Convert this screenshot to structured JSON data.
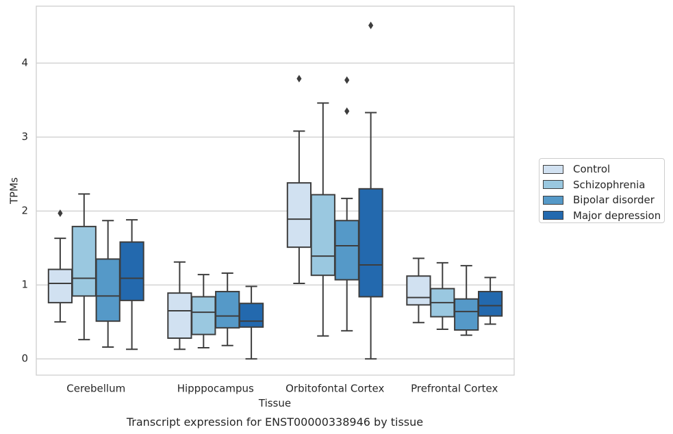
{
  "chart_data": {
    "type": "boxplot",
    "title": "",
    "xlabel": "Tissue",
    "ylabel": "TPMs",
    "caption": "Transcript expression for ENST00000338946 by tissue",
    "categories": [
      "Cerebellum",
      "Hipppocampus",
      "Orbitofontal Cortex",
      "Prefrontal Cortex"
    ],
    "ylim": [
      -0.22,
      4.77
    ],
    "yticks": [
      0,
      1,
      2,
      3,
      4
    ],
    "grid": "horizontal",
    "legend_position": "right",
    "series": [
      {
        "name": "Control",
        "color": "#d1e1f1",
        "boxes": [
          {
            "whislo": 0.5,
            "q1": 0.76,
            "med": 1.02,
            "q3": 1.21,
            "whishi": 1.63,
            "fliers": [
              1.97
            ]
          },
          {
            "whislo": 0.13,
            "q1": 0.28,
            "med": 0.65,
            "q3": 0.89,
            "whishi": 1.31,
            "fliers": []
          },
          {
            "whislo": 1.02,
            "q1": 1.51,
            "med": 1.89,
            "q3": 2.38,
            "whishi": 3.08,
            "fliers": [
              3.79
            ]
          },
          {
            "whislo": 0.49,
            "q1": 0.73,
            "med": 0.83,
            "q3": 1.12,
            "whishi": 1.36,
            "fliers": []
          }
        ]
      },
      {
        "name": "Schizophrenia",
        "color": "#9ac8e0",
        "boxes": [
          {
            "whislo": 0.26,
            "q1": 0.85,
            "med": 1.09,
            "q3": 1.79,
            "whishi": 2.23,
            "fliers": []
          },
          {
            "whislo": 0.15,
            "q1": 0.33,
            "med": 0.63,
            "q3": 0.84,
            "whishi": 1.14,
            "fliers": []
          },
          {
            "whislo": 0.31,
            "q1": 1.13,
            "med": 1.39,
            "q3": 2.22,
            "whishi": 3.46,
            "fliers": []
          },
          {
            "whislo": 0.4,
            "q1": 0.57,
            "med": 0.76,
            "q3": 0.95,
            "whishi": 1.3,
            "fliers": []
          }
        ]
      },
      {
        "name": "Bipolar disorder",
        "color": "#5599c8",
        "boxes": [
          {
            "whislo": 0.16,
            "q1": 0.51,
            "med": 0.85,
            "q3": 1.35,
            "whishi": 1.87,
            "fliers": []
          },
          {
            "whislo": 0.18,
            "q1": 0.42,
            "med": 0.58,
            "q3": 0.91,
            "whishi": 1.16,
            "fliers": []
          },
          {
            "whislo": 0.38,
            "q1": 1.07,
            "med": 1.53,
            "q3": 1.87,
            "whishi": 2.17,
            "fliers": [
              3.35,
              3.77
            ]
          },
          {
            "whislo": 0.32,
            "q1": 0.39,
            "med": 0.64,
            "q3": 0.81,
            "whishi": 1.26,
            "fliers": []
          }
        ]
      },
      {
        "name": "Major depression",
        "color": "#2369ae",
        "boxes": [
          {
            "whislo": 0.13,
            "q1": 0.79,
            "med": 1.09,
            "q3": 1.58,
            "whishi": 1.88,
            "fliers": []
          },
          {
            "whislo": 0.0,
            "q1": 0.43,
            "med": 0.51,
            "q3": 0.75,
            "whishi": 0.98,
            "fliers": []
          },
          {
            "whislo": 0.0,
            "q1": 0.84,
            "med": 1.27,
            "q3": 2.3,
            "whishi": 3.33,
            "fliers": [
              4.51
            ]
          },
          {
            "whislo": 0.47,
            "q1": 0.58,
            "med": 0.72,
            "q3": 0.91,
            "whishi": 1.1,
            "fliers": []
          }
        ]
      }
    ]
  }
}
